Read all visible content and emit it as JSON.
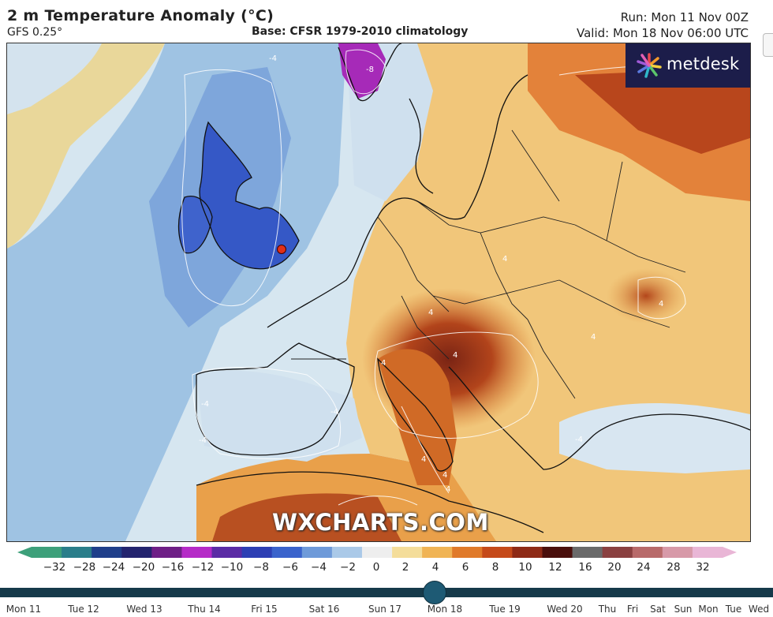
{
  "header": {
    "title": "2 m Temperature Anomaly (°C)",
    "model": "GFS 0.25°",
    "base": "Base: CFSR 1979-2010 climatology",
    "run": "Run: Mon 11 Nov 00Z",
    "valid": "Valid: Mon 18 Nov 06:00 UTC"
  },
  "map": {
    "logo": "metdesk",
    "watermark": "WXCHARTS.COM",
    "contour_labels": [
      "4",
      "-4",
      "-8",
      "-4",
      "-4",
      "-4",
      "4",
      "4",
      "4",
      "4",
      "4",
      "4",
      "-4",
      "4",
      "4"
    ],
    "colors": {
      "cold_blue": "#2f56c7",
      "cool": "#a9cbe6",
      "neutral": "#e8eef2",
      "warm": "#f2c46e",
      "hot": "#cf5a1c",
      "very_hot": "#8d2a16",
      "purple": "#a326b9"
    }
  },
  "colorbar": {
    "ticks": [
      "−32",
      "−28",
      "−24",
      "−20",
      "−16",
      "−12",
      "−10",
      "−8",
      "−6",
      "−4",
      "−2",
      "0",
      "2",
      "4",
      "6",
      "8",
      "10",
      "12",
      "16",
      "20",
      "24",
      "28",
      "32"
    ],
    "colors": [
      "#3da07a",
      "#2a7e8a",
      "#1f3f8a",
      "#23246e",
      "#6e1f86",
      "#b52bc7",
      "#5b2ca5",
      "#2d3fb4",
      "#3a63cc",
      "#6e9ad9",
      "#aac9e8",
      "#eeeeee",
      "#f4dd9a",
      "#f0b455",
      "#e07a2a",
      "#c54a1a",
      "#8e2a16",
      "#4a0f0c",
      "#6a6a6a",
      "#8a4040",
      "#b86a6a",
      "#d799a8",
      "#e9b6d6"
    ]
  },
  "timeline": {
    "days": [
      "Mon 11",
      "Tue 12",
      "Wed 13",
      "Thu 14",
      "Fri 15",
      "Sat 16",
      "Sun 17",
      "Mon 18",
      "Tue 19",
      "Wed 20",
      "Thu",
      "Fri",
      "Sat",
      "Sun",
      "Mon",
      "Tue",
      "Wed"
    ],
    "current": "Mon 18"
  }
}
